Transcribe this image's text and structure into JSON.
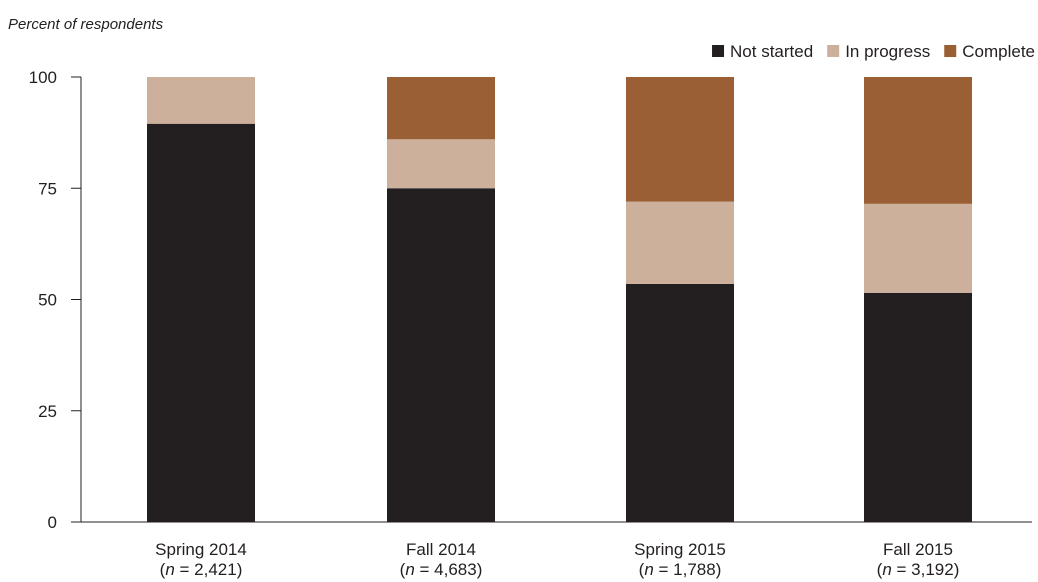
{
  "chart_data": {
    "type": "bar",
    "stacked": true,
    "y_axis_title": "Percent of respondents",
    "ylim": [
      0,
      100
    ],
    "yticks": [
      0,
      25,
      50,
      75,
      100
    ],
    "grid": false,
    "legend_position": "top-right",
    "categories": [
      {
        "name": "Spring 2014",
        "n_label": "2,421"
      },
      {
        "name": "Fall 2014",
        "n_label": "4,683"
      },
      {
        "name": "Spring 2015",
        "n_label": "1,788"
      },
      {
        "name": "Fall 2015",
        "n_label": "3,192"
      }
    ],
    "series": [
      {
        "name": "Not started",
        "color": "#231f20",
        "values": [
          89.5,
          75,
          53.5,
          51.5
        ]
      },
      {
        "name": "In progress",
        "color": "#cdb09c",
        "values": [
          10.5,
          11,
          18.5,
          20
        ]
      },
      {
        "name": "Complete",
        "color": "#9a5f34",
        "values": [
          0,
          14,
          28,
          28.5
        ]
      }
    ]
  }
}
